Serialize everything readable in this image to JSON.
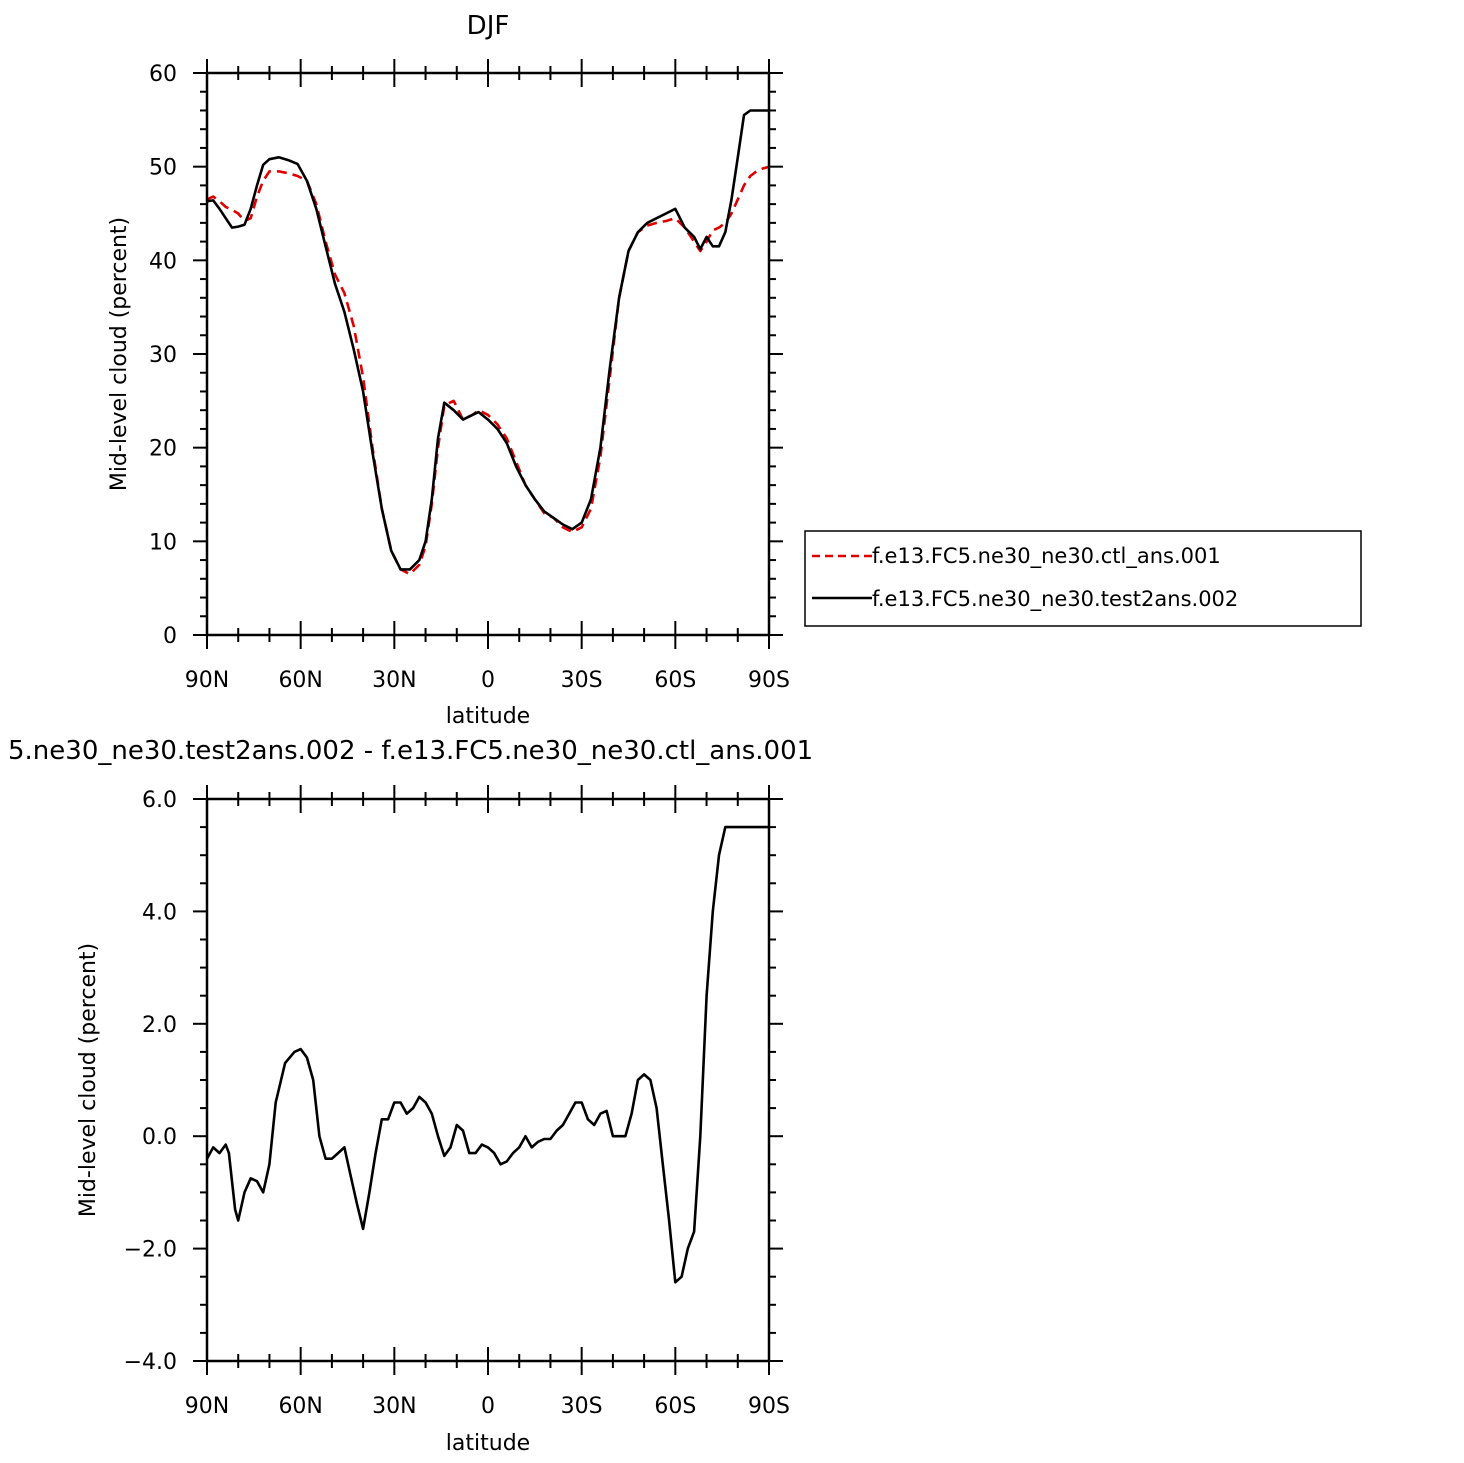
{
  "chart_data": [
    {
      "type": "line",
      "title": "DJF",
      "xlabel": "latitude",
      "ylabel": "Mid-level cloud (percent)",
      "x_tick_labels": [
        "90N",
        "60N",
        "30N",
        "0",
        "30S",
        "60S",
        "90S"
      ],
      "y_tick_labels": [
        "0",
        "10",
        "20",
        "30",
        "40",
        "50",
        "60"
      ],
      "xlim": [
        90,
        -90
      ],
      "ylim": [
        0,
        60
      ],
      "legend_position": "right",
      "series": [
        {
          "name": "f.e13.FC5.ne30_ne30.ctl_ans.001",
          "color": "#e00000",
          "dash": "dashed",
          "x": [
            90,
            88,
            86,
            84,
            82,
            80,
            78,
            76,
            74,
            72,
            70,
            67,
            64,
            61,
            58,
            55,
            52,
            49,
            46,
            43,
            40,
            37,
            34,
            31,
            28,
            25,
            22,
            20,
            18,
            16,
            14,
            11,
            8,
            5,
            3,
            0,
            -3,
            -6,
            -9,
            -12,
            -15,
            -18,
            -21,
            -24,
            -27,
            -30,
            -33,
            -36,
            -39,
            -42,
            -45,
            -48,
            -51,
            -54,
            -57,
            -60,
            -63,
            -66,
            -68,
            -70,
            -72,
            -74,
            -76,
            -78,
            -80,
            -82,
            -84,
            -86,
            -88,
            -90
          ],
          "y": [
            46.5,
            46.8,
            46.3,
            45.7,
            45.4,
            45.0,
            44.2,
            44.5,
            46.8,
            48.5,
            49.5,
            49.5,
            49.3,
            49.0,
            48.5,
            46.0,
            42.0,
            38.5,
            36.5,
            33.0,
            27.5,
            20.0,
            13.5,
            9.0,
            7.0,
            6.5,
            7.5,
            9.5,
            14.0,
            20.0,
            24.5,
            25.0,
            23.0,
            23.5,
            24.0,
            23.5,
            22.5,
            21.0,
            18.5,
            16.0,
            14.5,
            13.0,
            12.5,
            11.5,
            11.0,
            11.5,
            13.5,
            19.0,
            27.5,
            36.0,
            41.0,
            43.0,
            43.7,
            44.0,
            44.2,
            44.5,
            43.5,
            42.0,
            41.0,
            42.0,
            43.2,
            43.5,
            44.0,
            45.0,
            46.5,
            48.0,
            49.0,
            49.5,
            49.8,
            50.0
          ]
        },
        {
          "name": "f.e13.FC5.ne30_ne30.test2ans.002",
          "color": "#000000",
          "dash": "solid",
          "x": [
            90,
            88,
            86,
            84,
            82,
            80,
            78,
            76,
            74,
            72,
            70,
            67,
            64,
            61,
            58,
            55,
            52,
            49,
            46,
            43,
            40,
            37,
            34,
            31,
            28,
            25,
            22,
            20,
            18,
            16,
            14,
            11,
            8,
            5,
            3,
            0,
            -3,
            -6,
            -9,
            -12,
            -15,
            -18,
            -21,
            -24,
            -27,
            -30,
            -33,
            -36,
            -39,
            -42,
            -45,
            -48,
            -51,
            -54,
            -57,
            -60,
            -63,
            -66,
            -68,
            -70,
            -72,
            -74,
            -76,
            -78,
            -80,
            -82,
            -84,
            -86,
            -88,
            -90
          ],
          "y": [
            46.3,
            46.4,
            45.5,
            44.5,
            43.5,
            43.6,
            43.8,
            45.5,
            48.0,
            50.2,
            50.8,
            51.0,
            50.7,
            50.3,
            48.5,
            45.5,
            41.5,
            37.5,
            34.5,
            30.5,
            26.0,
            19.5,
            13.5,
            9.0,
            7.0,
            7.0,
            8.0,
            10.0,
            14.5,
            21.0,
            24.8,
            24.0,
            23.0,
            23.5,
            23.8,
            23.0,
            22.0,
            20.5,
            18.0,
            16.0,
            14.5,
            13.2,
            12.5,
            11.8,
            11.3,
            12.0,
            14.5,
            20.0,
            28.5,
            36.0,
            41.0,
            43.0,
            44.0,
            44.5,
            45.0,
            45.5,
            43.5,
            42.5,
            41.2,
            42.5,
            41.5,
            41.5,
            43.0,
            46.5,
            51.0,
            55.5,
            56.0,
            56.0,
            56.0,
            56.0
          ]
        }
      ]
    },
    {
      "type": "line",
      "title": "5.ne30_ne30.test2ans.002 - f.e13.FC5.ne30_ne30.ctl_ans.001",
      "xlabel": "latitude",
      "ylabel": "Mid-level cloud (percent)",
      "x_tick_labels": [
        "90N",
        "60N",
        "30N",
        "0",
        "30S",
        "60S",
        "90S"
      ],
      "y_tick_labels": [
        "−4.0",
        "−2.0",
        "0.0",
        "2.0",
        "4.0",
        "6.0"
      ],
      "xlim": [
        90,
        -90
      ],
      "ylim": [
        -4,
        6
      ],
      "series": [
        {
          "color": "#000000",
          "dash": "solid",
          "x": [
            90,
            88,
            86,
            84,
            83,
            81,
            80,
            78,
            76,
            74,
            72,
            70,
            68,
            65,
            62,
            60,
            58,
            56,
            54,
            52,
            50,
            48,
            46,
            44,
            42,
            40,
            38,
            36,
            34,
            32,
            30,
            28,
            26,
            24,
            22,
            20,
            18,
            16,
            14,
            12,
            10,
            8,
            6,
            4,
            2,
            0,
            -2,
            -4,
            -6,
            -8,
            -10,
            -12,
            -14,
            -16,
            -18,
            -20,
            -22,
            -24,
            -26,
            -28,
            -30,
            -32,
            -34,
            -36,
            -38,
            -40,
            -42,
            -44,
            -46,
            -48,
            -50,
            -52,
            -54,
            -56,
            -58,
            -60,
            -62,
            -64,
            -66,
            -68,
            -70,
            -72,
            -74,
            -76,
            -78,
            -80,
            -82,
            -84,
            -86,
            -87,
            -88,
            -89,
            -90
          ],
          "y": [
            -0.4,
            -0.2,
            -0.3,
            -0.15,
            -0.3,
            -1.3,
            -1.5,
            -1.0,
            -0.75,
            -0.8,
            -1.0,
            -0.5,
            0.6,
            1.3,
            1.5,
            1.55,
            1.4,
            1.0,
            0.0,
            -0.4,
            -0.4,
            -0.3,
            -0.2,
            -0.7,
            -1.2,
            -1.65,
            -1.0,
            -0.3,
            0.3,
            0.3,
            0.6,
            0.6,
            0.4,
            0.5,
            0.7,
            0.6,
            0.4,
            0.0,
            -0.35,
            -0.2,
            0.2,
            0.1,
            -0.3,
            -0.3,
            -0.15,
            -0.2,
            -0.3,
            -0.5,
            -0.45,
            -0.3,
            -0.2,
            0.0,
            -0.2,
            -0.1,
            -0.05,
            -0.05,
            0.1,
            0.2,
            0.4,
            0.6,
            0.6,
            0.3,
            0.2,
            0.4,
            0.45,
            0.0,
            0.0,
            0.0,
            0.4,
            1.0,
            1.1,
            1.0,
            0.5,
            -0.5,
            -1.5,
            -2.6,
            -2.5,
            -2.0,
            -1.7,
            0.0,
            2.5,
            4.0,
            5.0,
            5.5,
            5.5,
            5.5,
            5.5,
            5.5,
            5.5,
            5.5,
            5.5,
            5.5,
            5.5
          ]
        }
      ]
    }
  ]
}
